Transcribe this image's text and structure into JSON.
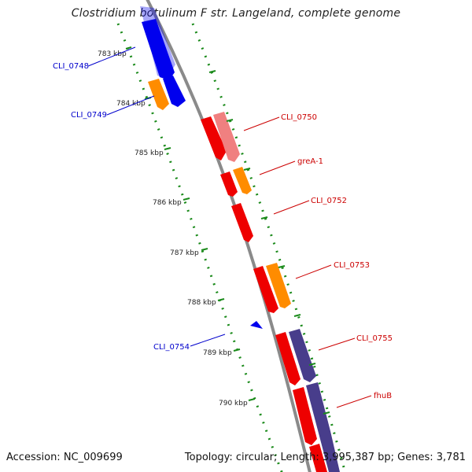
{
  "title": "Clostridium botulinum F str. Langeland, complete genome",
  "footer": {
    "accession": "Accession: NC_009699",
    "topology": "Topology: circular; Length: 3,995,387 bp; Genes: 3,781"
  },
  "colors": {
    "forward_cds": "#ee0000",
    "forward_cds_light": "#f08080",
    "forward_orange": "#ff8c00",
    "forward_purple": "#483d8b",
    "reverse_cds": "#0000ee",
    "reverse_orange": "#ff8c00",
    "forward_label": "#cc0000",
    "reverse_label": "#0000cc",
    "backbone": "#808080",
    "tick_dots": "#1a8a1a"
  },
  "ticks": [
    {
      "label": "783 kbp"
    },
    {
      "label": "784 kbp"
    },
    {
      "label": "785 kbp"
    },
    {
      "label": "786 kbp"
    },
    {
      "label": "787 kbp"
    },
    {
      "label": "788 kbp"
    },
    {
      "label": "789 kbp"
    },
    {
      "label": "790 kbp"
    }
  ],
  "genes": {
    "forward": [
      {
        "name": "CLI_0750"
      },
      {
        "name": "greA-1"
      },
      {
        "name": "CLI_0752"
      },
      {
        "name": "CLI_0753"
      },
      {
        "name": "CLI_0755"
      },
      {
        "name": "fhuB"
      }
    ],
    "reverse": [
      {
        "name": "CLI_0748"
      },
      {
        "name": "CLI_0749"
      },
      {
        "name": "CLI_0754"
      }
    ]
  }
}
